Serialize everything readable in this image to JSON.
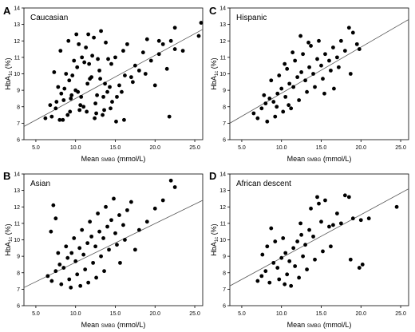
{
  "chart_data": [
    {
      "type": "scatter",
      "panel": "A",
      "title": "Caucasian",
      "xlabel": "Mean SMBG (mmol/L)",
      "ylabel": "HbA1c (%)",
      "xlim": [
        3.5,
        26
      ],
      "ylim": [
        6,
        14
      ],
      "xticks": [
        "5.0",
        "10.0",
        "15.0",
        "20.0",
        "25.0"
      ],
      "yticks": [
        "6",
        "7",
        "8",
        "9",
        "10",
        "11",
        "12",
        "13",
        "14"
      ],
      "fit_line": [
        [
          3.5,
          6.8
        ],
        [
          26,
          12.7
        ]
      ],
      "x": [
        8.0,
        9.0,
        10.5,
        11.0,
        12.5,
        13.5,
        14.0,
        15.5,
        17.0,
        18.0,
        19.5,
        20.5,
        21.0,
        22.0,
        22.5,
        25.5,
        25.8,
        8.5,
        9.5,
        10.0,
        11.5,
        12.0,
        13.0,
        14.5,
        15.0,
        16.0,
        16.5,
        7.0,
        7.5,
        8.2,
        9.2,
        10.2,
        10.8,
        11.3,
        12.3,
        13.2,
        13.8,
        14.3,
        15.2,
        16.2,
        17.5,
        18.5,
        19.0,
        6.2,
        6.8,
        7.8,
        8.8,
        9.8,
        10.4,
        11.6,
        12.6,
        13.6,
        14.6,
        15.8,
        17.2,
        18.8,
        20.0,
        21.5,
        7.3,
        8.1,
        9.1,
        10.1,
        11.1,
        12.1,
        13.1,
        14.1,
        15.1,
        16.1,
        9.4,
        10.6,
        11.4,
        12.4,
        13.4,
        14.4,
        8.6,
        9.6,
        10.3,
        11.7,
        12.7,
        13.7,
        9.3,
        10.7,
        11.8,
        12.8,
        7.6,
        8.4,
        20.5,
        22.5,
        23.5,
        21.8
      ],
      "y": [
        7.2,
        7.5,
        7.8,
        8.0,
        8.2,
        8.6,
        8.9,
        9.3,
        9.8,
        10.2,
        10.8,
        11.2,
        11.8,
        12.0,
        11.5,
        12.3,
        13.1,
        8.4,
        8.7,
        9.0,
        9.4,
        9.8,
        10.2,
        10.6,
        11.0,
        11.4,
        11.8,
        7.4,
        7.9,
        8.8,
        9.6,
        10.4,
        11.0,
        11.6,
        12.2,
        12.6,
        11.9,
        9.2,
        8.6,
        9.9,
        10.5,
        11.3,
        12.1,
        7.3,
        8.1,
        9.2,
        10.0,
        10.8,
        11.8,
        12.4,
        7.6,
        7.8,
        8.3,
        8.9,
        9.5,
        10.0,
        9.3,
        10.3,
        10.1,
        11.4,
        12.0,
        12.4,
        10.7,
        11.1,
        9.7,
        10.9,
        7.1,
        7.2,
        8.5,
        8.1,
        7.7,
        7.3,
        7.5,
        7.9,
        9.1,
        9.9,
        8.9,
        10.6,
        8.7,
        9.4,
        7.7,
        8.6,
        9.7,
        10.9,
        8.3,
        7.2,
        12.0,
        12.8,
        11.4,
        7.4
      ]
    },
    {
      "type": "scatter",
      "panel": "B",
      "title": "Asian",
      "xlabel": "Mean SMBG (mmol/L)",
      "ylabel": "HbA1c (%)",
      "xlim": [
        3.5,
        26
      ],
      "ylim": [
        6,
        14
      ],
      "xticks": [
        "5.0",
        "10.0",
        "15.0",
        "20.0",
        "25.0"
      ],
      "yticks": [
        "6",
        "7",
        "8",
        "9",
        "10",
        "11",
        "12",
        "13",
        "14"
      ],
      "fit_line": [
        [
          3.5,
          7.1
        ],
        [
          26,
          12.4
        ]
      ],
      "x": [
        6.5,
        7.0,
        7.5,
        8.0,
        8.5,
        9.0,
        9.5,
        10.0,
        10.5,
        11.0,
        11.5,
        12.0,
        12.5,
        13.0,
        13.5,
        14.0,
        14.5,
        15.0,
        15.5,
        16.0,
        16.5,
        17.0,
        18.0,
        19.0,
        20.0,
        21.0,
        22.0,
        22.5,
        8.2,
        9.2,
        10.2,
        11.2,
        12.2,
        13.2,
        14.2,
        15.2,
        16.2,
        7.8,
        8.8,
        9.8,
        10.8,
        11.8,
        12.8,
        13.8,
        14.8,
        7.2,
        9.4,
        10.6,
        11.6,
        12.6,
        13.6,
        15.6,
        17.5,
        7.5,
        6.9
      ],
      "y": [
        7.8,
        7.5,
        8.1,
        8.5,
        8.3,
        8.9,
        9.2,
        8.7,
        9.5,
        9.1,
        9.8,
        10.2,
        9.6,
        10.5,
        10.1,
        10.8,
        11.2,
        10.4,
        11.5,
        10.9,
        11.8,
        12.3,
        10.6,
        11.1,
        11.9,
        12.4,
        13.6,
        13.2,
        7.3,
        7.6,
        7.9,
        8.2,
        8.6,
        9.0,
        9.4,
        9.7,
        10.0,
        9.2,
        9.6,
        10.1,
        10.6,
        11.1,
        11.6,
        12.0,
        12.5,
        12.1,
        7.1,
        7.2,
        7.4,
        7.7,
        8.1,
        8.6,
        9.4,
        11.3,
        10.5
      ]
    },
    {
      "type": "scatter",
      "panel": "C",
      "title": "Hispanic",
      "xlabel": "Mean SMBG (mmol/L)",
      "ylabel": "HbA1c (%)",
      "xlim": [
        3.5,
        26
      ],
      "ylim": [
        6,
        14
      ],
      "xticks": [
        "5.0",
        "10.0",
        "15.0",
        "20.0",
        "25.0"
      ],
      "yticks": [
        "6",
        "7",
        "8",
        "9",
        "10",
        "11",
        "12",
        "13",
        "14"
      ],
      "fit_line": [
        [
          3.5,
          7.0
        ],
        [
          26,
          13.3
        ]
      ],
      "x": [
        6.5,
        7.0,
        7.5,
        8.0,
        8.5,
        9.0,
        9.5,
        10.0,
        10.5,
        11.0,
        11.5,
        12.0,
        12.5,
        13.0,
        13.5,
        14.0,
        14.5,
        15.0,
        15.5,
        16.0,
        16.5,
        17.0,
        17.5,
        18.0,
        18.5,
        19.0,
        19.5,
        8.2,
        9.2,
        10.2,
        11.2,
        12.2,
        13.2,
        14.2,
        15.2,
        16.2,
        17.2,
        9.7,
        10.7,
        11.7,
        12.7,
        13.7,
        14.7,
        7.8,
        8.7,
        10.4,
        11.4,
        12.4,
        13.4,
        15.4,
        16.6,
        18.7,
        19.8,
        9.4,
        10.9
      ],
      "y": [
        7.6,
        7.3,
        7.9,
        8.2,
        8.5,
        8.3,
        8.8,
        9.1,
        8.6,
        9.4,
        9.2,
        9.8,
        10.1,
        9.6,
        10.4,
        10.0,
        10.9,
        10.5,
        11.2,
        10.8,
        11.6,
        11.0,
        12.0,
        11.4,
        12.8,
        12.5,
        11.8,
        7.1,
        7.4,
        7.7,
        7.9,
        8.4,
        8.9,
        9.2,
        9.7,
        10.2,
        10.4,
        9.9,
        10.3,
        10.8,
        11.2,
        11.7,
        12.0,
        8.7,
        9.6,
        10.6,
        11.3,
        12.3,
        11.9,
        8.8,
        9.1,
        10.0,
        11.5,
        8.0,
        8.1
      ]
    },
    {
      "type": "scatter",
      "panel": "D",
      "title": "African descent",
      "xlabel": "Mean SMBG (mmol/L)",
      "ylabel": "HbA1c (%)",
      "xlim": [
        3.5,
        26
      ],
      "ylim": [
        6,
        14
      ],
      "xticks": [
        "5.0",
        "10.0",
        "15.0",
        "20.0",
        "25.0"
      ],
      "yticks": [
        "6",
        "7",
        "8",
        "9",
        "10",
        "11",
        "12",
        "13",
        "14"
      ],
      "fit_line": [
        [
          3.5,
          7.2
        ],
        [
          26,
          13.1
        ]
      ],
      "x": [
        7.0,
        7.5,
        8.0,
        8.5,
        9.0,
        9.5,
        10.0,
        10.5,
        11.0,
        11.5,
        12.0,
        12.5,
        13.0,
        13.5,
        14.0,
        14.5,
        15.0,
        15.5,
        16.0,
        16.5,
        17.0,
        17.5,
        18.0,
        18.5,
        19.0,
        20.0,
        21.0,
        24.5,
        8.2,
        9.2,
        10.2,
        11.2,
        12.2,
        13.2,
        14.2,
        15.2,
        16.2,
        9.7,
        10.7,
        11.7,
        12.7,
        13.7,
        7.6,
        8.7,
        10.4,
        12.4,
        14.7,
        18.7,
        20.2,
        19.8
      ],
      "y": [
        7.5,
        7.8,
        8.1,
        7.4,
        8.6,
        8.3,
        8.9,
        9.2,
        8.7,
        9.5,
        9.9,
        10.3,
        9.7,
        10.6,
        10.2,
        12.6,
        11.1,
        12.4,
        10.8,
        10.9,
        11.6,
        11.0,
        12.7,
        12.6,
        11.3,
        11.2,
        11.3,
        12.0,
        9.6,
        9.9,
        10.1,
        7.2,
        7.7,
        8.2,
        8.8,
        9.3,
        9.6,
        7.6,
        7.9,
        8.4,
        9.0,
        11.9,
        9.1,
        10.7,
        7.3,
        11.0,
        12.2,
        8.8,
        8.5,
        8.3
      ]
    }
  ]
}
